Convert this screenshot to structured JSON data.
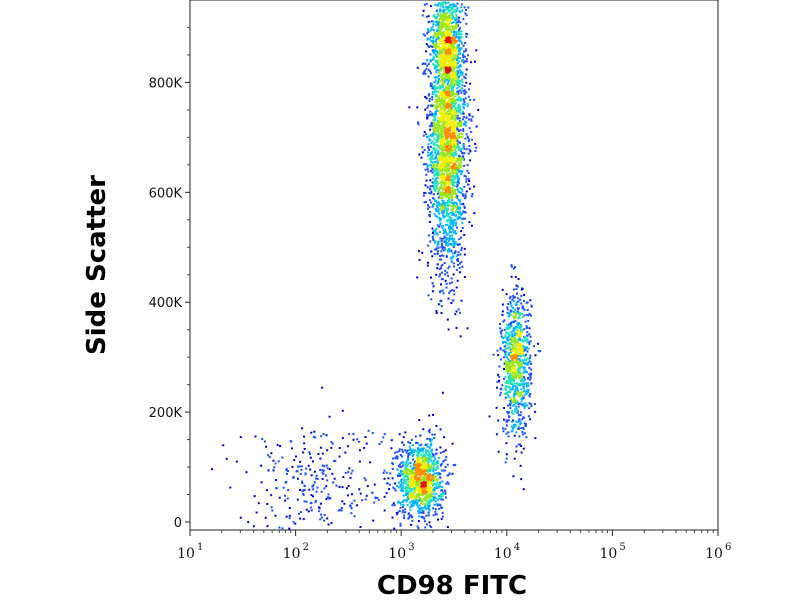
{
  "chart_data": {
    "type": "scatter",
    "xlabel": "CD98 FITC",
    "ylabel": "Side Scatter",
    "x_scale": "log",
    "xlim": [
      10,
      1000000
    ],
    "ylim": [
      0,
      950000
    ],
    "x_ticks": [
      {
        "base": "10",
        "exp": "1",
        "value": 10
      },
      {
        "base": "10",
        "exp": "2",
        "value": 100
      },
      {
        "base": "10",
        "exp": "3",
        "value": 1000
      },
      {
        "base": "10",
        "exp": "4",
        "value": 10000
      },
      {
        "base": "10",
        "exp": "5",
        "value": 100000
      },
      {
        "base": "10",
        "exp": "6",
        "value": 1000000
      }
    ],
    "y_ticks": [
      {
        "label": "0",
        "value": 0
      },
      {
        "label": "200K",
        "value": 200000
      },
      {
        "label": "400K",
        "value": 400000
      },
      {
        "label": "600K",
        "value": 600000
      },
      {
        "label": "800K",
        "value": 800000
      }
    ],
    "clusters": [
      {
        "name": "",
        "center_x": 2700,
        "center_y": 700000,
        "spread_log10_x": 0.09,
        "spread_y": 120000,
        "events": 2600
      },
      {
        "name": "",
        "center_x": 2600,
        "center_y": 880000,
        "spread_log10_x": 0.08,
        "spread_y": 55000,
        "events": 700
      },
      {
        "name": "",
        "center_x": 12000,
        "center_y": 290000,
        "spread_log10_x": 0.07,
        "spread_y": 65000,
        "events": 900
      },
      {
        "name": "",
        "center_x": 1500,
        "center_y": 80000,
        "spread_log10_x": 0.11,
        "spread_y": 35000,
        "events": 1100
      },
      {
        "name": "",
        "center_x": 150,
        "center_y": 70000,
        "spread_log10_x": 0.35,
        "spread_y": 60000,
        "events": 300
      }
    ],
    "colormap": [
      "#0000cc",
      "#1a4cff",
      "#00b4ff",
      "#22e0c0",
      "#9be61e",
      "#f0f000",
      "#ff8a00",
      "#e01010"
    ],
    "grid": false,
    "legend": "none"
  }
}
